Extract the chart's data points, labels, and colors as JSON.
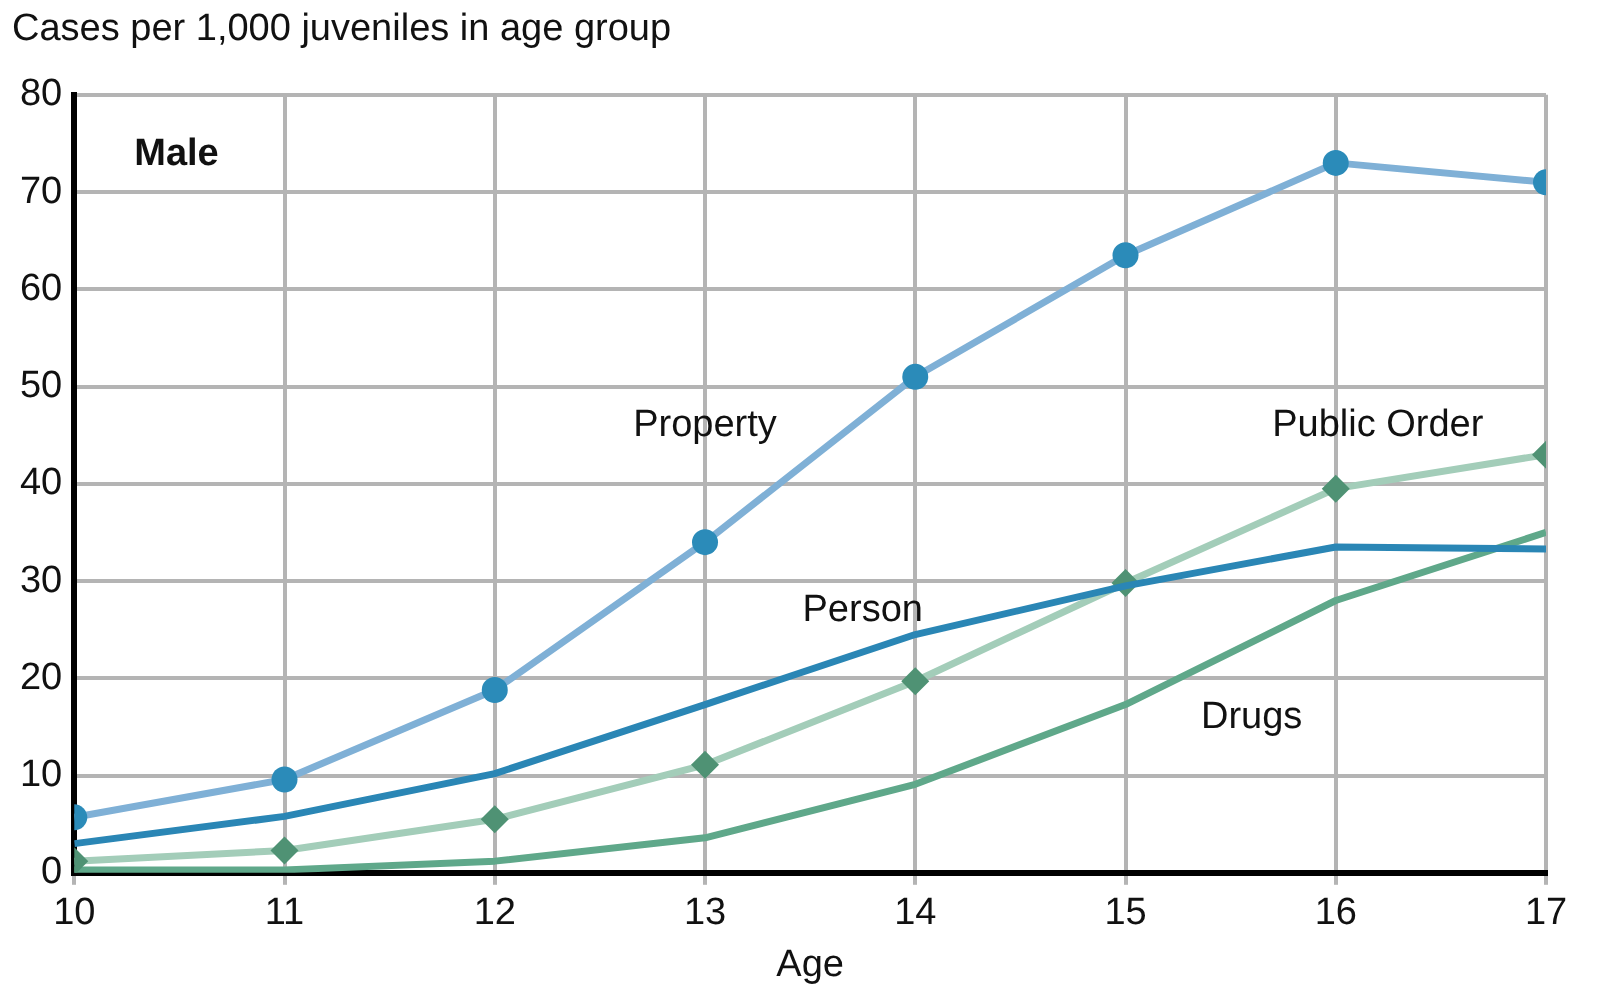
{
  "chart_data": {
    "type": "line",
    "ylabel": "Cases per 1,000 juveniles in age group",
    "xlabel": "Age",
    "annotations": [
      "Male"
    ],
    "x": [
      10,
      11,
      12,
      13,
      14,
      15,
      16,
      17
    ],
    "series": [
      {
        "name": "Property",
        "color": "#7fb0d6",
        "marker": "circle",
        "values": [
          5.7,
          9.6,
          18.8,
          34,
          51,
          63.5,
          73,
          71
        ]
      },
      {
        "name": "Person",
        "color": "#2a86b5",
        "marker": "none",
        "values": [
          3,
          5.8,
          10.2,
          17.3,
          24.5,
          29.5,
          33.5,
          33.3
        ]
      },
      {
        "name": "Public Order",
        "color": "#a3cdb9",
        "marker": "diamond",
        "values": [
          1.2,
          2.3,
          5.5,
          11.1,
          19.7,
          29.8,
          39.5,
          43
        ]
      },
      {
        "name": "Drugs",
        "color": "#5fa88a",
        "marker": "none",
        "values": [
          0.3,
          0.3,
          1.2,
          3.6,
          9.1,
          17.3,
          28,
          35
        ]
      }
    ],
    "xlim": [
      10,
      17
    ],
    "xticks": [
      10,
      11,
      12,
      13,
      14,
      15,
      16,
      17
    ],
    "ylim": [
      0,
      80
    ],
    "yticks": [
      0,
      10,
      20,
      30,
      40,
      50,
      60,
      70,
      80
    ],
    "grid": true,
    "legend": false
  }
}
